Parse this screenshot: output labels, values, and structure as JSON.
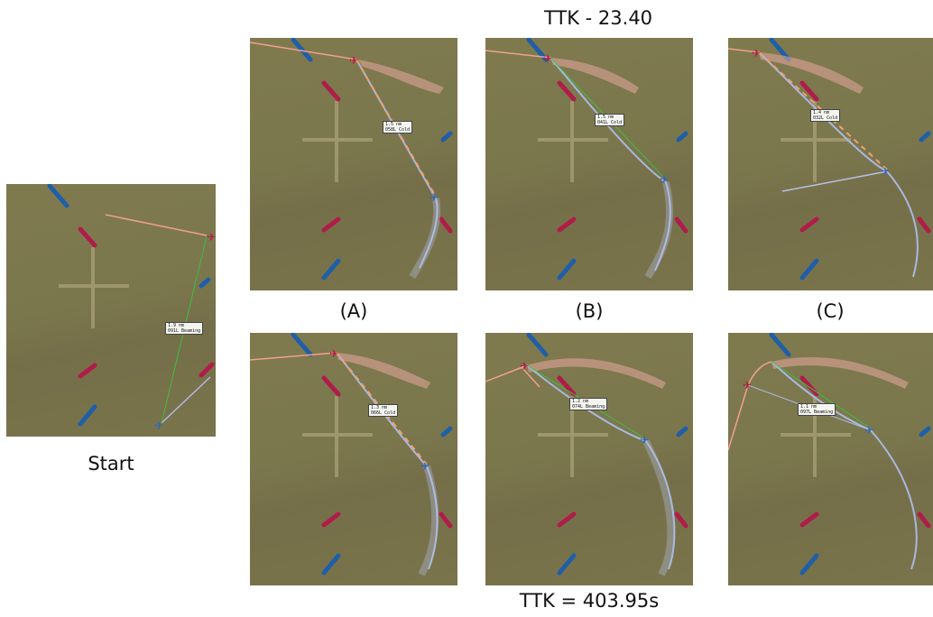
{
  "header": {
    "top_ttk": "TTK - 23.40",
    "bottom_ttk": "TTK = 403.95s"
  },
  "captions": {
    "start": "Start",
    "a": "(A)",
    "b": "(B)",
    "c": "(C)"
  },
  "panels": {
    "start": {
      "range": "1.9 nm",
      "aspect": "091L Beaming"
    },
    "a": {
      "range": "1.5 nm",
      "aspect": "058L Cold"
    },
    "b": {
      "range": "1.5 nm",
      "aspect": "041L Cold"
    },
    "c": {
      "range": "1.4 nm",
      "aspect": "032L Cold"
    },
    "d": {
      "range": "1.3 nm",
      "aspect": "066L Cold"
    },
    "e": {
      "range": "1.2 nm",
      "aspect": "074L Beaming"
    },
    "f": {
      "range": "1.1 nm",
      "aspect": "097L Beaming"
    }
  },
  "colors": {
    "terrain": "#7b774d",
    "red_marker": "#b01c4a",
    "blue_marker": "#1f5fa8",
    "red_track": "#f0a090",
    "blue_track": "#a9b8e0",
    "los_line": "#3fbf3f"
  }
}
